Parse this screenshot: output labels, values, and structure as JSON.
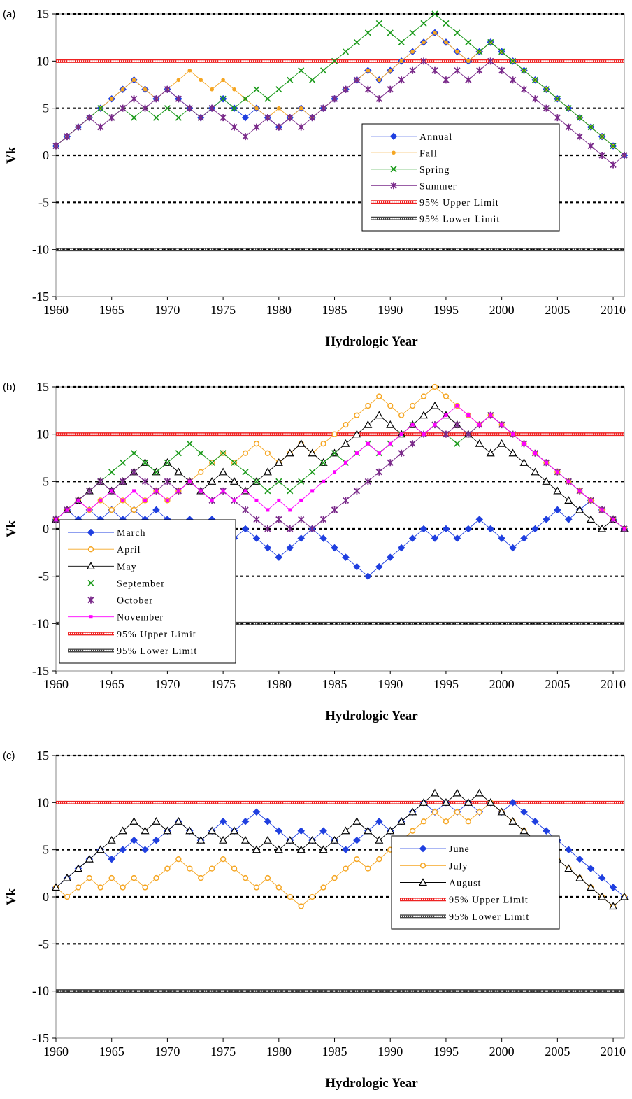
{
  "colors": {
    "annual": "#1f3fe0",
    "fall": "#f5a623",
    "spring": "#1a9a1a",
    "summer": "#7a2a8a",
    "march": "#1f3fe0",
    "april": "#f5a623",
    "may": "#000000",
    "september": "#1a9a1a",
    "october": "#7a2a8a",
    "november": "#ff00ff",
    "june": "#1f3fe0",
    "july": "#f5a623",
    "august": "#000000",
    "upper_limit": "#ee2222",
    "lower_limit": "#444444"
  },
  "chart_data": [
    {
      "panel": "(a)",
      "type": "line",
      "xlabel": "Hydrologic Year",
      "ylabel": "Vk",
      "xlim": [
        1960,
        2011
      ],
      "ylim": [
        -15,
        15
      ],
      "xticks": [
        1960,
        1965,
        1970,
        1975,
        1980,
        1985,
        1990,
        1995,
        2000,
        2005,
        2010
      ],
      "yticks": [
        -15,
        -10,
        -5,
        0,
        5,
        10,
        15
      ],
      "dashed_gridlines": [
        15,
        5,
        0,
        -5,
        -10
      ],
      "x": [
        1960,
        1961,
        1962,
        1963,
        1964,
        1965,
        1966,
        1967,
        1968,
        1969,
        1970,
        1971,
        1972,
        1973,
        1974,
        1975,
        1976,
        1977,
        1978,
        1979,
        1980,
        1981,
        1982,
        1983,
        1984,
        1985,
        1986,
        1987,
        1988,
        1989,
        1990,
        1991,
        1992,
        1993,
        1994,
        1995,
        1996,
        1997,
        1998,
        1999,
        2000,
        2001,
        2002,
        2003,
        2004,
        2005,
        2006,
        2007,
        2008,
        2009,
        2010,
        2011
      ],
      "legend_position": "center-right",
      "series": [
        {
          "name": "Annual",
          "marker": "diamond",
          "color_key": "annual",
          "values": [
            1,
            2,
            3,
            4,
            5,
            6,
            7,
            8,
            7,
            6,
            7,
            6,
            5,
            4,
            5,
            6,
            5,
            4,
            5,
            4,
            3,
            4,
            5,
            4,
            5,
            6,
            7,
            8,
            9,
            8,
            9,
            10,
            11,
            12,
            13,
            12,
            11,
            10,
            11,
            12,
            11,
            10,
            9,
            8,
            7,
            6,
            5,
            4,
            3,
            2,
            1,
            0
          ]
        },
        {
          "name": "Fall",
          "marker": "dot",
          "color_key": "fall",
          "values": [
            1,
            2,
            3,
            4,
            5,
            6,
            7,
            8,
            7,
            6,
            7,
            8,
            9,
            8,
            7,
            8,
            7,
            6,
            5,
            4,
            5,
            4,
            5,
            4,
            5,
            6,
            7,
            8,
            9,
            8,
            9,
            10,
            11,
            12,
            13,
            12,
            11,
            10,
            11,
            12,
            11,
            10,
            9,
            8,
            7,
            6,
            5,
            4,
            3,
            2,
            1,
            0
          ]
        },
        {
          "name": "Spring",
          "marker": "x",
          "color_key": "spring",
          "values": [
            1,
            2,
            3,
            4,
            5,
            4,
            5,
            4,
            5,
            4,
            5,
            4,
            5,
            4,
            5,
            6,
            5,
            6,
            7,
            6,
            7,
            8,
            9,
            8,
            9,
            10,
            11,
            12,
            13,
            14,
            13,
            12,
            13,
            14,
            15,
            14,
            13,
            12,
            11,
            12,
            11,
            10,
            9,
            8,
            7,
            6,
            5,
            4,
            3,
            2,
            1,
            0
          ]
        },
        {
          "name": "Summer",
          "marker": "star",
          "color_key": "summer",
          "values": [
            1,
            2,
            3,
            4,
            3,
            4,
            5,
            6,
            5,
            6,
            7,
            6,
            5,
            4,
            5,
            4,
            3,
            2,
            3,
            4,
            3,
            4,
            3,
            4,
            5,
            6,
            7,
            8,
            7,
            6,
            7,
            8,
            9,
            10,
            9,
            8,
            9,
            8,
            9,
            10,
            9,
            8,
            7,
            6,
            5,
            4,
            3,
            2,
            1,
            0,
            -1,
            0
          ]
        }
      ],
      "limits": [
        {
          "name": "95% Upper Limit",
          "value": 10,
          "color_key": "upper_limit"
        },
        {
          "name": "95% Lower Limit",
          "value": -10,
          "color_key": "lower_limit"
        }
      ]
    },
    {
      "panel": "(b)",
      "type": "line",
      "xlabel": "Hydrologic Year",
      "ylabel": "Vk",
      "xlim": [
        1960,
        2011
      ],
      "ylim": [
        -15,
        15
      ],
      "xticks": [
        1960,
        1965,
        1970,
        1975,
        1980,
        1985,
        1990,
        1995,
        2000,
        2005,
        2010
      ],
      "yticks": [
        -15,
        -10,
        -5,
        0,
        5,
        10,
        15
      ],
      "dashed_gridlines": [
        15,
        5,
        0,
        -5,
        -10
      ],
      "x": [
        1960,
        1961,
        1962,
        1963,
        1964,
        1965,
        1966,
        1967,
        1968,
        1969,
        1970,
        1971,
        1972,
        1973,
        1974,
        1975,
        1976,
        1977,
        1978,
        1979,
        1980,
        1981,
        1982,
        1983,
        1984,
        1985,
        1986,
        1987,
        1988,
        1989,
        1990,
        1991,
        1992,
        1993,
        1994,
        1995,
        1996,
        1997,
        1998,
        1999,
        2000,
        2001,
        2002,
        2003,
        2004,
        2005,
        2006,
        2007,
        2008,
        2009,
        2010,
        2011
      ],
      "legend_position": "bottom-left",
      "series": [
        {
          "name": "March",
          "marker": "diamond",
          "color_key": "march",
          "values": [
            1,
            2,
            1,
            2,
            1,
            2,
            1,
            2,
            1,
            2,
            1,
            0,
            1,
            0,
            1,
            0,
            -1,
            0,
            -1,
            -2,
            -3,
            -2,
            -1,
            0,
            -1,
            -2,
            -3,
            -4,
            -5,
            -4,
            -3,
            -2,
            -1,
            0,
            -1,
            0,
            -1,
            0,
            1,
            0,
            -1,
            -2,
            -1,
            0,
            1,
            2,
            1,
            2,
            3,
            2,
            1,
            0
          ]
        },
        {
          "name": "April",
          "marker": "circle",
          "color_key": "april",
          "values": [
            1,
            2,
            3,
            2,
            3,
            2,
            3,
            2,
            3,
            4,
            3,
            4,
            5,
            6,
            7,
            8,
            7,
            8,
            9,
            8,
            7,
            8,
            9,
            8,
            9,
            10,
            11,
            12,
            13,
            14,
            13,
            12,
            13,
            14,
            15,
            14,
            13,
            12,
            11,
            12,
            11,
            10,
            9,
            8,
            7,
            6,
            5,
            4,
            3,
            2,
            1,
            0
          ]
        },
        {
          "name": "May",
          "marker": "triangle",
          "color_key": "may",
          "values": [
            1,
            2,
            3,
            4,
            5,
            4,
            5,
            6,
            7,
            6,
            7,
            6,
            5,
            4,
            5,
            6,
            5,
            4,
            5,
            6,
            7,
            8,
            9,
            8,
            7,
            8,
            9,
            10,
            11,
            12,
            11,
            10,
            11,
            12,
            13,
            12,
            11,
            10,
            9,
            8,
            9,
            8,
            7,
            6,
            5,
            4,
            3,
            2,
            1,
            0,
            1,
            0
          ]
        },
        {
          "name": "September",
          "marker": "x",
          "color_key": "september",
          "values": [
            1,
            2,
            3,
            4,
            5,
            6,
            7,
            8,
            7,
            6,
            7,
            8,
            9,
            8,
            7,
            8,
            7,
            6,
            5,
            4,
            5,
            4,
            5,
            6,
            7,
            8,
            7,
            8,
            9,
            8,
            9,
            10,
            11,
            10,
            11,
            10,
            9,
            10,
            11,
            12,
            11,
            10,
            9,
            8,
            7,
            6,
            5,
            4,
            3,
            2,
            1,
            0
          ]
        },
        {
          "name": "October",
          "marker": "star",
          "color_key": "october",
          "values": [
            1,
            2,
            3,
            4,
            5,
            4,
            5,
            6,
            5,
            4,
            5,
            4,
            5,
            4,
            3,
            4,
            3,
            2,
            1,
            0,
            1,
            0,
            1,
            0,
            1,
            2,
            3,
            4,
            5,
            6,
            7,
            8,
            9,
            10,
            11,
            10,
            11,
            10,
            11,
            12,
            11,
            10,
            9,
            8,
            7,
            6,
            5,
            4,
            3,
            2,
            1,
            0
          ]
        },
        {
          "name": "November",
          "marker": "square",
          "color_key": "november",
          "values": [
            1,
            2,
            3,
            2,
            3,
            4,
            3,
            4,
            3,
            4,
            3,
            4,
            5,
            4,
            3,
            4,
            3,
            4,
            3,
            2,
            3,
            2,
            3,
            4,
            5,
            6,
            7,
            8,
            9,
            8,
            9,
            10,
            11,
            10,
            11,
            12,
            13,
            12,
            11,
            12,
            11,
            10,
            9,
            8,
            7,
            6,
            5,
            4,
            3,
            2,
            1,
            0
          ]
        }
      ],
      "limits": [
        {
          "name": "95% Upper Limit",
          "value": 10,
          "color_key": "upper_limit"
        },
        {
          "name": "95% Lower Limit",
          "value": -10,
          "color_key": "lower_limit"
        }
      ]
    },
    {
      "panel": "(c)",
      "type": "line",
      "xlabel": "Hydrologic Year",
      "ylabel": "Vk",
      "xlim": [
        1960,
        2011
      ],
      "ylim": [
        -15,
        15
      ],
      "xticks": [
        1960,
        1965,
        1970,
        1975,
        1980,
        1985,
        1990,
        1995,
        2000,
        2005,
        2010
      ],
      "yticks": [
        -15,
        -10,
        -5,
        0,
        5,
        10,
        15
      ],
      "dashed_gridlines": [
        15,
        5,
        0,
        -5,
        -10
      ],
      "x": [
        1960,
        1961,
        1962,
        1963,
        1964,
        1965,
        1966,
        1967,
        1968,
        1969,
        1970,
        1971,
        1972,
        1973,
        1974,
        1975,
        1976,
        1977,
        1978,
        1979,
        1980,
        1981,
        1982,
        1983,
        1984,
        1985,
        1986,
        1987,
        1988,
        1989,
        1990,
        1991,
        1992,
        1993,
        1994,
        1995,
        1996,
        1997,
        1998,
        1999,
        2000,
        2001,
        2002,
        2003,
        2004,
        2005,
        2006,
        2007,
        2008,
        2009,
        2010,
        2011
      ],
      "legend_position": "lower-right",
      "series": [
        {
          "name": "June",
          "marker": "diamond",
          "color_key": "june",
          "values": [
            1,
            2,
            3,
            4,
            5,
            4,
            5,
            6,
            5,
            6,
            7,
            8,
            7,
            6,
            7,
            8,
            7,
            8,
            9,
            8,
            7,
            6,
            7,
            6,
            7,
            6,
            5,
            6,
            7,
            8,
            7,
            8,
            9,
            10,
            9,
            10,
            9,
            10,
            9,
            10,
            9,
            10,
            9,
            8,
            7,
            6,
            5,
            4,
            3,
            2,
            1,
            0
          ]
        },
        {
          "name": "July",
          "marker": "circle",
          "color_key": "july",
          "values": [
            1,
            0,
            1,
            2,
            1,
            2,
            1,
            2,
            1,
            2,
            3,
            4,
            3,
            2,
            3,
            4,
            3,
            2,
            1,
            2,
            1,
            0,
            -1,
            0,
            1,
            2,
            3,
            4,
            3,
            4,
            5,
            6,
            7,
            8,
            9,
            8,
            9,
            8,
            9,
            10,
            9,
            8,
            7,
            6,
            5,
            4,
            3,
            2,
            1,
            0,
            -1,
            0
          ]
        },
        {
          "name": "August",
          "marker": "triangle",
          "color_key": "august",
          "values": [
            1,
            2,
            3,
            4,
            5,
            6,
            7,
            8,
            7,
            8,
            7,
            8,
            7,
            6,
            7,
            6,
            7,
            6,
            5,
            6,
            5,
            6,
            5,
            6,
            5,
            6,
            7,
            8,
            7,
            6,
            7,
            8,
            9,
            10,
            11,
            10,
            11,
            10,
            11,
            10,
            9,
            8,
            7,
            6,
            5,
            4,
            3,
            2,
            1,
            0,
            -1,
            0
          ]
        }
      ],
      "limits": [
        {
          "name": "95% Upper Limit",
          "value": 10,
          "color_key": "upper_limit"
        },
        {
          "name": "95% Lower Limit",
          "value": -10,
          "color_key": "lower_limit"
        }
      ]
    }
  ]
}
